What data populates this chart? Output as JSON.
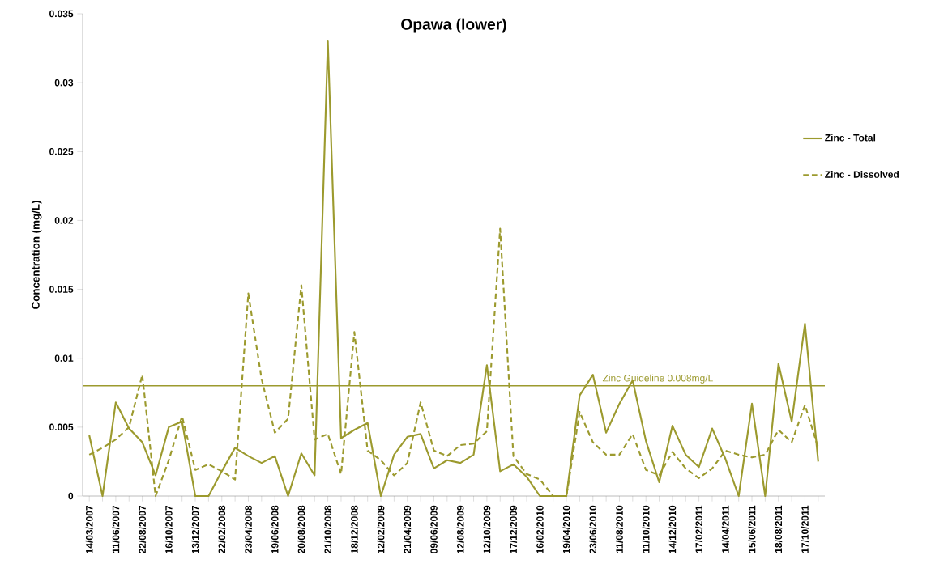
{
  "chart_data": {
    "type": "line",
    "title": "Opawa (lower)",
    "ylabel": "Concentration (mg/L)",
    "categories": [
      "14/03/2007",
      null,
      "11/06/2007",
      null,
      "22/08/2007",
      null,
      "16/10/2007",
      null,
      "13/12/2007",
      null,
      "22/02/2008",
      null,
      "23/04/2008",
      null,
      "19/06/2008",
      null,
      "20/08/2008",
      null,
      "21/10/2008",
      null,
      "18/12/2008",
      null,
      "12/02/2009",
      null,
      "21/04/2009",
      null,
      "09/06/2009",
      null,
      "12/08/2009",
      null,
      "12/10/2009",
      null,
      "17/12/2009",
      null,
      "16/02/2010",
      null,
      "19/04/2010",
      null,
      "23/06/2010",
      null,
      "11/08/2010",
      null,
      "11/10/2010",
      null,
      "14/12/2010",
      null,
      "17/02/2011",
      null,
      "14/04/2011",
      null,
      "15/06/2011",
      null,
      "18/08/2011",
      null,
      "17/10/2011",
      null
    ],
    "series": [
      {
        "name": "Zinc - Total",
        "color": "#9c9a2e",
        "line_style": "solid",
        "values": [
          0.0044,
          0,
          0.0068,
          0.0049,
          0.0039,
          0.0015,
          0.005,
          0.0054,
          0,
          0,
          0.0018,
          0.0035,
          0.0029,
          0.0024,
          0.0029,
          0,
          0.0031,
          0.0015,
          0.033,
          0.0042,
          0.0048,
          0.0053,
          0,
          0.003,
          0.0043,
          0.0045,
          0.002,
          0.0026,
          0.0024,
          0.003,
          0.0095,
          0.0018,
          0.0023,
          0.0014,
          0,
          0,
          0,
          0.0073,
          0.0088,
          0.0046,
          0.0067,
          0.0084,
          0.004,
          0.001,
          0.0051,
          0.003,
          0.0021,
          0.0049,
          0.0027,
          0,
          0.0067,
          0,
          0.0096,
          0.0054,
          0.0125,
          0.0025
        ]
      },
      {
        "name": "Zinc - Dissolved",
        "color": "#9c9a2e",
        "line_style": "dashed",
        "values": [
          0.003,
          0.0035,
          0.0041,
          0.005,
          0.0088,
          0,
          0.0026,
          0.0058,
          0.0019,
          0.0023,
          0.0018,
          0.0012,
          0.0147,
          0.0085,
          0.0046,
          0.0056,
          0.0153,
          0.0041,
          0.0045,
          0.0016,
          0.0119,
          0.0033,
          0.0026,
          0.0015,
          0.0024,
          0.0068,
          0.0033,
          0.0029,
          0.0037,
          0.0038,
          0.0047,
          0.0194,
          0.0029,
          0.0016,
          0.0012,
          0,
          0,
          0.0061,
          0.0039,
          0.003,
          0.003,
          0.0045,
          0.0019,
          0.0015,
          0.0032,
          0.002,
          0.0013,
          0.002,
          0.0033,
          0.003,
          0.0028,
          0.003,
          0.0048,
          0.0039,
          0.0066,
          0.0035
        ]
      }
    ],
    "ylim": [
      0,
      0.035
    ],
    "yticks": [
      0,
      0.005,
      0.01,
      0.015,
      0.02,
      0.025,
      0.03,
      0.035
    ],
    "ref_lines": [
      {
        "axis": "y",
        "value": 0.008,
        "label": "Zinc Guideline 0.008mg/L",
        "color": "#9c9a2e"
      }
    ],
    "legend": "right",
    "grid": false
  }
}
